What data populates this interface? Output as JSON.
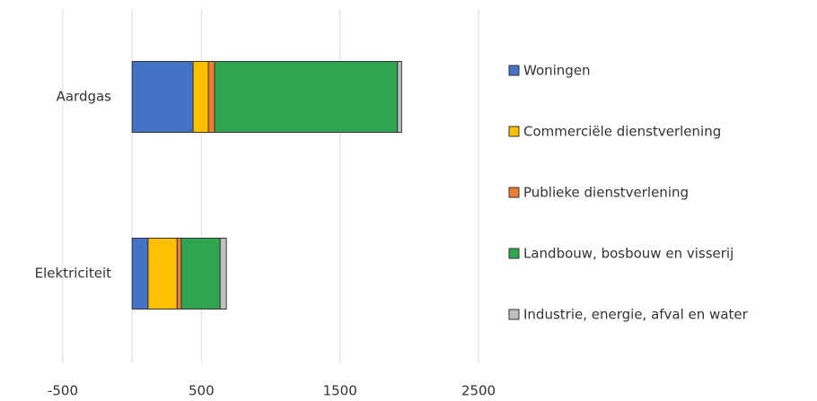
{
  "chart_data": {
    "type": "stacked_barh",
    "categories": [
      "Aardgas",
      "Elektriciteit"
    ],
    "series": [
      {
        "name": "Woningen",
        "color": "#4472c4",
        "values": [
          440,
          115
        ]
      },
      {
        "name": "Commerciële dienstverlening",
        "color": "#ffc000",
        "values": [
          110,
          210
        ]
      },
      {
        "name": "Publieke dienstverlening",
        "color": "#ed7d31",
        "values": [
          45,
          30
        ]
      },
      {
        "name": "Landbouw, bosbouw en visserij",
        "color": "#2ea64f",
        "values": [
          1320,
          280
        ]
      },
      {
        "name": "Industrie, energie, afval en water",
        "color": "#bfbfbf",
        "values": [
          30,
          45
        ]
      }
    ],
    "xlim": [
      -500,
      2500
    ],
    "xticks": [
      -500,
      500,
      1500,
      2500
    ],
    "grid": true,
    "legend": "right"
  }
}
